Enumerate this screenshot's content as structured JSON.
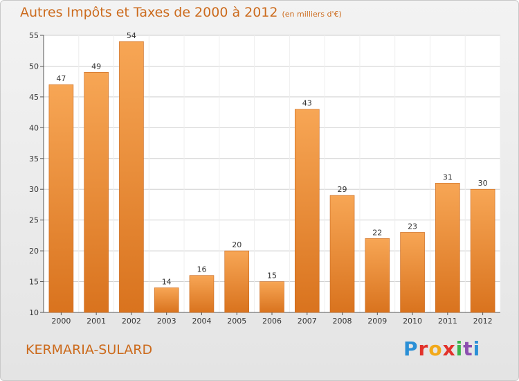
{
  "title": "Autres Impôts et Taxes de 2000 à 2012",
  "subtitle": "(en milliers d'€)",
  "place": "KERMARIA-SULARD",
  "logo": [
    "P",
    "r",
    "o",
    "x",
    "i",
    "t",
    "i"
  ],
  "colors": {
    "accent": "#cc6b1d",
    "bar_top": "#f7a655",
    "bar_bottom": "#d9731e",
    "grid": "#cfcfcf"
  },
  "chart_data": {
    "type": "bar",
    "title": "Autres Impôts et Taxes de 2000 à 2012",
    "subtitle": "(en milliers d'€)",
    "categories": [
      "2000",
      "2001",
      "2002",
      "2003",
      "2004",
      "2005",
      "2006",
      "2007",
      "2008",
      "2009",
      "2010",
      "2011",
      "2012"
    ],
    "values": [
      47,
      49,
      54,
      14,
      16,
      20,
      15,
      43,
      29,
      22,
      23,
      31,
      30
    ],
    "ylim": [
      10,
      55
    ],
    "yticks": [
      10,
      15,
      20,
      25,
      30,
      35,
      40,
      45,
      50,
      55
    ],
    "grid": true,
    "legend": "none"
  }
}
